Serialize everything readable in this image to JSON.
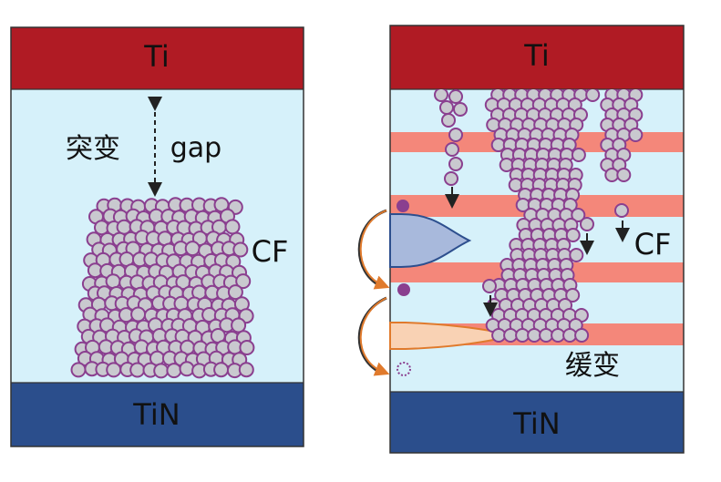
{
  "left_panel": {
    "top_electrode": "Ti",
    "bottom_electrode": "TiN",
    "gap_label": "gap",
    "abrupt_label": "突变",
    "filament_label": "CF"
  },
  "right_panel": {
    "top_electrode": "Ti",
    "bottom_electrode": "TiN",
    "filament_label": "CF",
    "gradual_label": "缓变"
  },
  "colors": {
    "ti": "#b01b24",
    "tin": "#2b4e8c",
    "oxide": "#d6f1fa",
    "stripe": "#f4877a",
    "ion_fill": "#c9c9cf",
    "ion_stroke": "#8a3f8f",
    "vacancy": "#8a3f8f",
    "arrow_orange": "#e07a2c",
    "blue_peak": "#a8b9dc",
    "orange_peak": "#f9d2b4"
  }
}
